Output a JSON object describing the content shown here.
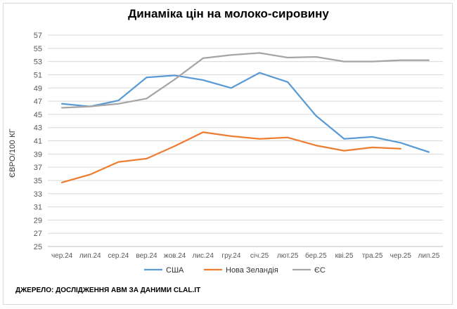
{
  "chart_data": {
    "type": "line",
    "title": "Динаміка цін на молоко-сировину",
    "xlabel": "",
    "ylabel": "ЄВРО/100 КГ",
    "categories": [
      "чер.24",
      "лип.24",
      "сер.24",
      "вер.24",
      "жов.24",
      "лис.24",
      "гру.24",
      "січ.25",
      "лют.25",
      "бер.25",
      "кві.25",
      "тра.25",
      "чер.25",
      "лип.25"
    ],
    "ylim": [
      25,
      57
    ],
    "yticks": [
      25,
      27,
      29,
      31,
      33,
      35,
      37,
      39,
      41,
      43,
      45,
      47,
      49,
      51,
      53,
      55,
      57
    ],
    "grid": true,
    "legend_position": "bottom",
    "series": [
      {
        "name": "США",
        "color": "#5b9bd5",
        "values": [
          46.6,
          46.2,
          47.1,
          50.6,
          50.9,
          50.2,
          49.0,
          51.3,
          49.9,
          44.8,
          41.3,
          41.6,
          40.7,
          39.3
        ]
      },
      {
        "name": "Нова Зеландія",
        "color": "#ed7d31",
        "values": [
          34.7,
          35.9,
          37.8,
          38.3,
          40.2,
          42.3,
          41.7,
          41.3,
          41.5,
          40.3,
          39.5,
          40.0,
          39.8,
          null
        ]
      },
      {
        "name": "ЄС",
        "color": "#a5a5a5",
        "values": [
          46.0,
          46.2,
          46.6,
          47.4,
          50.3,
          53.5,
          54.0,
          54.3,
          53.6,
          53.7,
          53.0,
          53.0,
          53.2,
          53.2
        ]
      }
    ]
  },
  "source_text": "ДЖЕРЕЛО: ДОСЛІДЖЕННЯ АВМ ЗА ДАНИМИ CLAL.IT"
}
